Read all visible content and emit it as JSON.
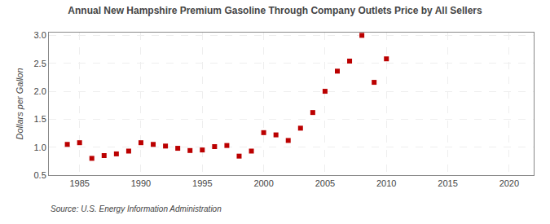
{
  "chart_data": {
    "type": "scatter",
    "title": "Annual New Hampshire Premium Gasoline Through Company Outlets Price by All Sellers",
    "ylabel": "Dollars per Gallon",
    "annotations": [
      "Source: U.S. Energy Information Administration"
    ],
    "x": [
      1984,
      1985,
      1986,
      1987,
      1988,
      1989,
      1990,
      1991,
      1992,
      1993,
      1994,
      1995,
      1996,
      1997,
      1998,
      1999,
      2000,
      2001,
      2002,
      2003,
      2004,
      2005,
      2006,
      2007,
      2008,
      2009,
      2010
    ],
    "values": [
      1.05,
      1.08,
      0.8,
      0.85,
      0.88,
      0.93,
      1.08,
      1.05,
      1.02,
      0.98,
      0.94,
      0.95,
      1.01,
      1.03,
      0.84,
      0.93,
      1.26,
      1.22,
      1.12,
      1.34,
      1.62,
      2.0,
      2.36,
      2.54,
      3.0,
      2.16,
      2.58
    ],
    "color": "#bb0000",
    "marker": "square",
    "xlim": [
      1982.5,
      2022
    ],
    "ylim": [
      0.5,
      3.05
    ],
    "xticks": [
      1985,
      1990,
      1995,
      2000,
      2005,
      2010,
      2015,
      2020
    ],
    "yticks": [
      0.5,
      {
        "value": 1.0,
        "label": "1.0"
      },
      1.5,
      {
        "value": 2.0,
        "label": "2.0"
      },
      2.5,
      {
        "value": 3.0,
        "label": "3.0"
      }
    ],
    "grid": true
  }
}
